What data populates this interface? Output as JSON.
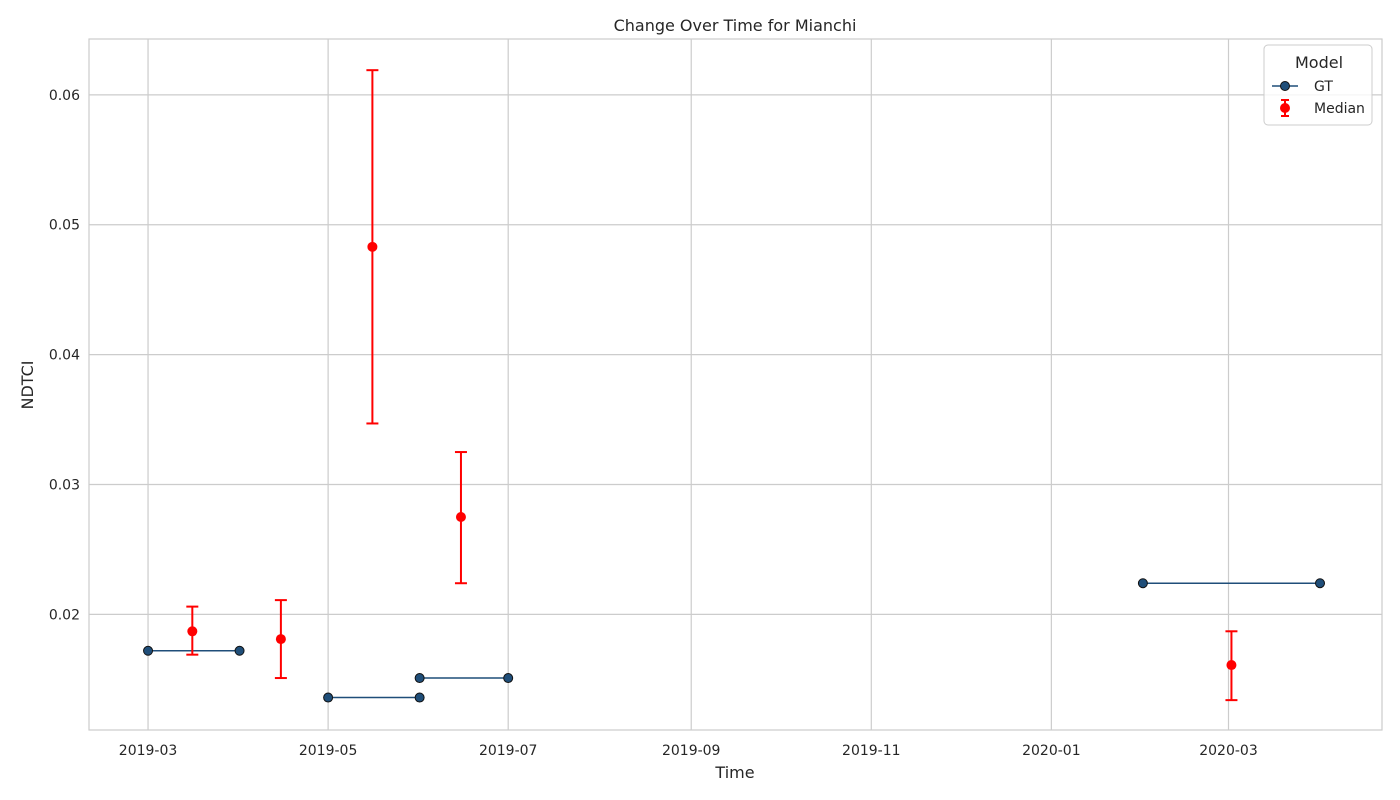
{
  "chart_data": {
    "type": "line",
    "title": "Change Over Time for Mianchi",
    "xlabel": "Time",
    "ylabel": "NDTCI",
    "x_ticks": [
      "2019-03",
      "2019-05",
      "2019-07",
      "2019-09",
      "2019-11",
      "2020-01",
      "2020-03"
    ],
    "y_ticks": [
      "0.02",
      "0.03",
      "0.04",
      "0.05",
      "0.06"
    ],
    "xlim": [
      "2019-02-09",
      "2020-04-22"
    ],
    "ylim": [
      0.0111,
      0.0643
    ],
    "grid": true,
    "legend": {
      "title": "Model",
      "placement": "top-right",
      "entries": [
        "GT",
        "Median"
      ]
    },
    "series": [
      {
        "name": "GT",
        "kind": "line-with-markers",
        "color": "#1f4e79",
        "segments": [
          [
            {
              "x": "2019-03-01",
              "y": 0.0172
            },
            {
              "x": "2019-04-01",
              "y": 0.0172
            }
          ],
          [
            {
              "x": "2019-05-01",
              "y": 0.0136
            },
            {
              "x": "2019-06-01",
              "y": 0.0136
            }
          ],
          [
            {
              "x": "2019-06-01",
              "y": 0.0151
            },
            {
              "x": "2019-07-01",
              "y": 0.0151
            }
          ],
          [
            {
              "x": "2020-02-01",
              "y": 0.0224
            },
            {
              "x": "2020-04-01",
              "y": 0.0224
            }
          ]
        ]
      },
      {
        "name": "Median",
        "kind": "errorbar",
        "color": "#ff0000",
        "points": [
          {
            "x": "2019-03-16",
            "y": 0.0187,
            "low": 0.0169,
            "high": 0.0206
          },
          {
            "x": "2019-04-15",
            "y": 0.0181,
            "low": 0.0151,
            "high": 0.0211
          },
          {
            "x": "2019-05-16",
            "y": 0.0483,
            "low": 0.0347,
            "high": 0.0619
          },
          {
            "x": "2019-06-15",
            "y": 0.0275,
            "low": 0.0224,
            "high": 0.0325
          },
          {
            "x": "2020-03-02",
            "y": 0.0161,
            "low": 0.0134,
            "high": 0.0187
          }
        ]
      }
    ]
  }
}
